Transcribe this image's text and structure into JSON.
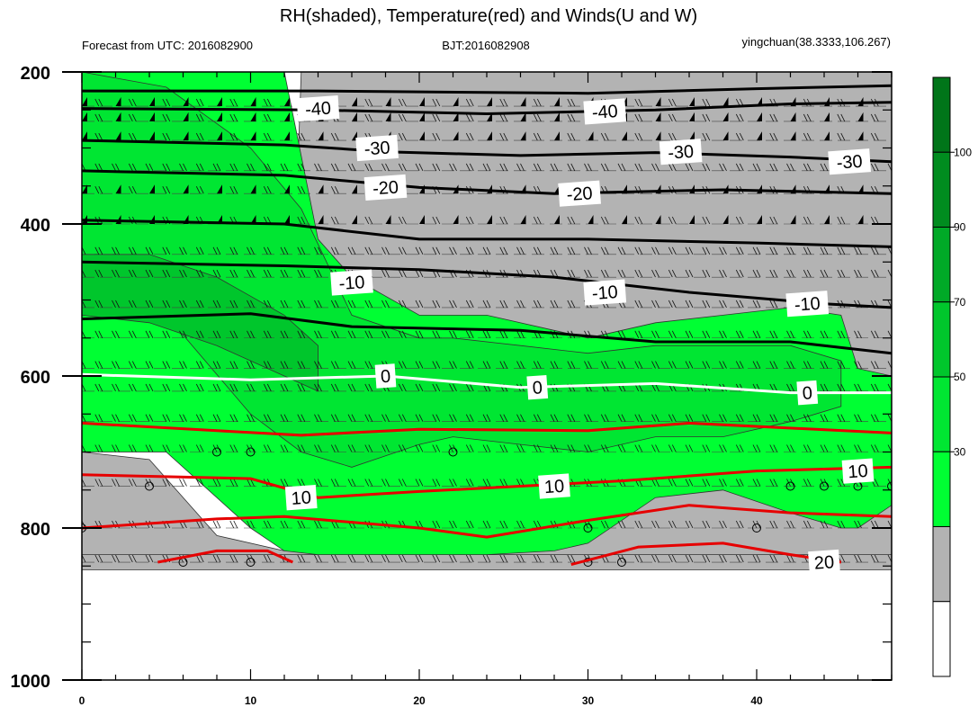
{
  "chart_data": {
    "type": "contour-cross-section",
    "title": "RH(shaded), Temperature(red) and Winds(U and W)",
    "subtitle_left": "Forecast from UTC: 2016082900",
    "subtitle_center": "BJT:2016082908",
    "subtitle_right": "yingchuan(38.3333,106.267)",
    "x_ticks": [
      "0",
      "10",
      "20",
      "30",
      "40"
    ],
    "xlim": [
      0,
      48
    ],
    "y_ticks": [
      "200",
      "400",
      "600",
      "800",
      "1000"
    ],
    "ylim": [
      200,
      1000
    ],
    "y_inverted": true,
    "colorbar": {
      "levels": [
        "30",
        "50",
        "70",
        "90",
        "100"
      ],
      "colors": [
        "#ffffff",
        "#b3b3b3",
        "#00ff33",
        "#00e632",
        "#00c62c",
        "#00a927",
        "#008c1f",
        "#007519"
      ]
    },
    "rh_bands": [
      {
        "color": "#b3b3b3",
        "x": [
          0,
          48
        ],
        "top": [
          835,
          835
        ],
        "bottom": [
          855,
          855
        ]
      },
      {
        "color": "#b3b3b3",
        "x": [
          0,
          4,
          8,
          12,
          13,
          24,
          29,
          31,
          33,
          36,
          40,
          44,
          48
        ],
        "top": [
          700,
          710,
          810,
          830,
          200,
          200,
          200,
          200,
          200,
          200,
          200,
          200,
          200
        ],
        "bottom": [
          835,
          835,
          835,
          835,
          835,
          835,
          835,
          835,
          835,
          835,
          835,
          835,
          835
        ]
      },
      {
        "color": "#00ff33",
        "x": [
          0,
          5,
          10,
          12,
          14,
          16,
          20,
          24,
          28,
          30,
          34,
          38,
          42,
          45,
          46,
          48
        ],
        "top": [
          200,
          200,
          200,
          200,
          420,
          470,
          520,
          520,
          540,
          550,
          530,
          520,
          510,
          520,
          590,
          600
        ],
        "bottom": [
          700,
          700,
          800,
          830,
          835,
          835,
          835,
          835,
          830,
          820,
          760,
          750,
          780,
          800,
          800,
          770
        ]
      },
      {
        "color": "#00e632",
        "x": [
          0,
          5,
          10,
          13,
          16,
          20,
          22,
          26,
          30,
          34,
          38,
          42,
          45
        ],
        "top": [
          200,
          220,
          300,
          380,
          520,
          550,
          550,
          560,
          570,
          560,
          560,
          560,
          580
        ],
        "bottom": [
          520,
          520,
          650,
          700,
          720,
          690,
          680,
          690,
          700,
          680,
          680,
          660,
          640
        ]
      },
      {
        "color": "#00c62c",
        "x": [
          0,
          4,
          8,
          12,
          14
        ],
        "top": [
          440,
          440,
          470,
          520,
          560
        ],
        "bottom": [
          520,
          530,
          560,
          600,
          620
        ]
      }
    ],
    "temperature_contours": [
      {
        "label": "0",
        "color": "#ffffff",
        "x": [
          0,
          10,
          18,
          26,
          34,
          42,
          48
        ],
        "y": [
          598,
          605,
          600,
          615,
          610,
          622,
          622
        ]
      },
      {
        "label": "",
        "color": "#e60000",
        "x": [
          0,
          8,
          13,
          20,
          30,
          36,
          48
        ],
        "y": [
          662,
          672,
          678,
          670,
          672,
          662,
          675
        ]
      },
      {
        "label": "10",
        "color": "#e60000",
        "x": [
          0,
          10,
          14,
          20,
          26,
          32,
          40,
          48
        ],
        "y": [
          730,
          735,
          760,
          752,
          745,
          738,
          725,
          720
        ]
      },
      {
        "label": "",
        "color": "#e60000",
        "x": [
          0,
          8,
          12,
          20,
          24,
          30,
          36,
          42,
          48
        ],
        "y": [
          800,
          788,
          785,
          800,
          812,
          790,
          770,
          780,
          785
        ]
      },
      {
        "label": "20",
        "color": "#e60000",
        "x": [
          4.5,
          8,
          11,
          12.5
        ],
        "y": [
          845,
          830,
          830,
          845
        ]
      },
      {
        "label": "",
        "color": "#e60000",
        "x": [
          29,
          33,
          38,
          42,
          45
        ],
        "y": [
          848,
          825,
          820,
          835,
          845
        ]
      },
      {
        "label": "-10",
        "color": "#000000",
        "x": [
          0,
          10,
          16,
          26,
          34,
          42,
          48
        ],
        "y": [
          525,
          518,
          535,
          540,
          555,
          555,
          570
        ]
      },
      {
        "label": "",
        "color": "#000000",
        "x": [
          0,
          12,
          20,
          28,
          36,
          44,
          48
        ],
        "y": [
          450,
          455,
          460,
          470,
          490,
          505,
          510
        ]
      },
      {
        "label": "",
        "color": "#000000",
        "x": [
          0,
          12,
          20,
          30,
          40,
          48
        ],
        "y": [
          395,
          400,
          420,
          420,
          425,
          430
        ]
      },
      {
        "label": "-20",
        "color": "#000000",
        "x": [
          0,
          12,
          20,
          28,
          38,
          48
        ],
        "y": [
          330,
          336,
          352,
          360,
          355,
          360
        ]
      },
      {
        "label": "-30",
        "color": "#000000",
        "x": [
          0,
          12,
          18,
          26,
          34,
          42,
          48
        ],
        "y": [
          290,
          296,
          305,
          310,
          306,
          312,
          318
        ]
      },
      {
        "label": "-40",
        "color": "#000000",
        "x": [
          0,
          14,
          24,
          34,
          42,
          48
        ],
        "y": [
          248,
          250,
          255,
          250,
          242,
          240
        ]
      },
      {
        "label": "",
        "color": "#000000",
        "x": [
          0,
          14,
          30,
          40,
          48
        ],
        "y": [
          225,
          225,
          228,
          222,
          218
        ]
      }
    ],
    "contour_labels": [
      {
        "text": "-40",
        "x": 14,
        "y": 248
      },
      {
        "text": "-40",
        "x": 31,
        "y": 252
      },
      {
        "text": "-30",
        "x": 17.5,
        "y": 300
      },
      {
        "text": "-30",
        "x": 35.5,
        "y": 305
      },
      {
        "text": "-30",
        "x": 45.5,
        "y": 318
      },
      {
        "text": "-20",
        "x": 18,
        "y": 352
      },
      {
        "text": "-20",
        "x": 29.5,
        "y": 360
      },
      {
        "text": "-10",
        "x": 16,
        "y": 477
      },
      {
        "text": "-10",
        "x": 31,
        "y": 490
      },
      {
        "text": "-10",
        "x": 43,
        "y": 505
      },
      {
        "text": "0",
        "x": 18,
        "y": 600
      },
      {
        "text": "0",
        "x": 27,
        "y": 615
      },
      {
        "text": "0",
        "x": 43,
        "y": 622
      },
      {
        "text": "10",
        "x": 13,
        "y": 760
      },
      {
        "text": "10",
        "x": 28,
        "y": 745
      },
      {
        "text": "10",
        "x": 46,
        "y": 725
      },
      {
        "text": "20",
        "x": 44,
        "y": 845
      }
    ],
    "wind_rows": [
      {
        "p": 245,
        "flag": true
      },
      {
        "p": 265,
        "flag": true
      },
      {
        "p": 290,
        "flag": true
      },
      {
        "p": 330,
        "flag": false
      },
      {
        "p": 360,
        "flag": true
      },
      {
        "p": 400,
        "flag": true
      },
      {
        "p": 440,
        "flag": false
      },
      {
        "p": 470,
        "flag": false
      },
      {
        "p": 510,
        "flag": false
      },
      {
        "p": 550,
        "flag": false
      },
      {
        "p": 590,
        "flag": false
      },
      {
        "p": 620,
        "flag": false
      },
      {
        "p": 660,
        "flag": false
      },
      {
        "p": 700,
        "flag": false
      },
      {
        "p": 745,
        "flag": false
      },
      {
        "p": 800,
        "flag": false
      },
      {
        "p": 845,
        "flag": false
      }
    ],
    "calm_points": [
      {
        "x": 8,
        "p": 700
      },
      {
        "x": 10,
        "p": 700
      },
      {
        "x": 22,
        "p": 700
      },
      {
        "x": 4,
        "p": 745
      },
      {
        "x": 42,
        "p": 745
      },
      {
        "x": 44,
        "p": 745
      },
      {
        "x": 46,
        "p": 745
      },
      {
        "x": 48,
        "p": 745
      },
      {
        "x": 0,
        "p": 800
      },
      {
        "x": 30,
        "p": 800
      },
      {
        "x": 40,
        "p": 800
      },
      {
        "x": 6,
        "p": 845
      },
      {
        "x": 10,
        "p": 845
      },
      {
        "x": 30,
        "p": 845
      },
      {
        "x": 32,
        "p": 845
      }
    ]
  }
}
